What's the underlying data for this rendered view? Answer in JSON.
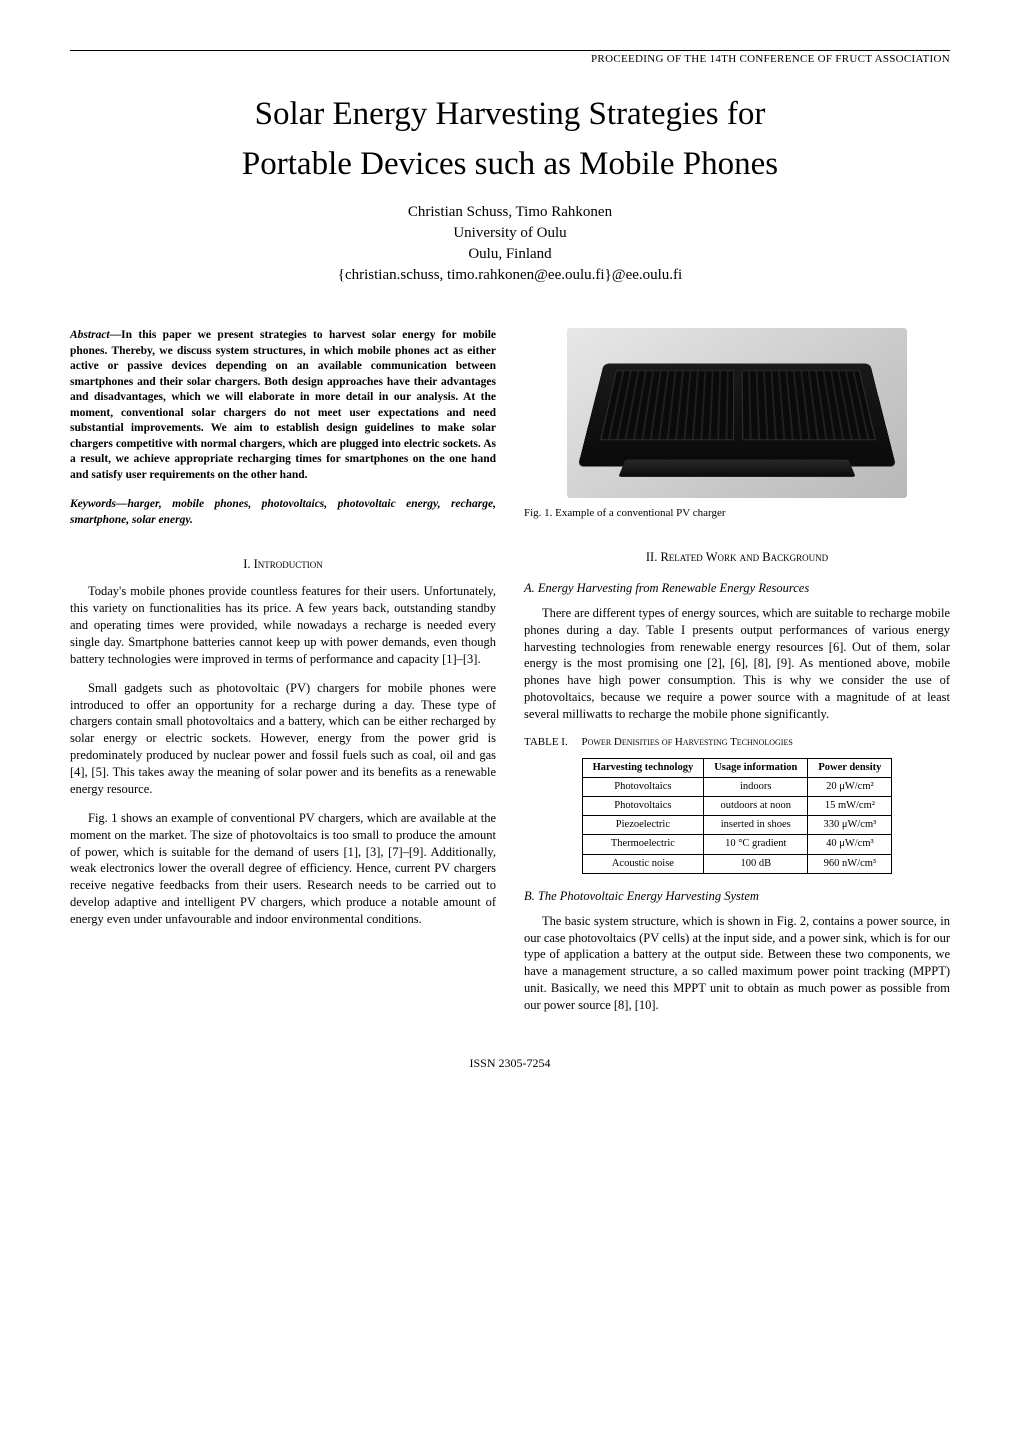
{
  "header": {
    "running": "PROCEEDING OF THE 14TH CONFERENCE OF FRUCT ASSOCIATION"
  },
  "title": {
    "line1": "Solar Energy Harvesting Strategies for",
    "line2": "Portable Devices such as Mobile Phones"
  },
  "authors": {
    "names": "Christian Schuss, Timo Rahkonen",
    "affiliation": "University of Oulu",
    "location": "Oulu, Finland",
    "email": "{christian.schuss, timo.rahkonen@ee.oulu.fi}@ee.oulu.fi"
  },
  "abstract": {
    "label": "Abstract",
    "text": "—In this paper we present strategies to harvest solar energy for mobile phones. Thereby, we discuss system structures, in which mobile phones act as either active or passive devices depending on an available communication between smartphones and their solar chargers. Both design approaches have their advantages and disadvantages, which we will elaborate in more detail in our analysis. At the moment, conventional solar chargers do not meet user expectations and need substantial improvements. We aim to establish design guidelines to make solar chargers competitive with normal chargers, which are plugged into electric sockets. As a result, we achieve appropriate recharging times for smartphones on the one hand and satisfy user requirements on the other hand."
  },
  "keywords": {
    "label": "Keywords",
    "text": "—harger, mobile phones, photovoltaics, photovoltaic energy, recharge, smartphone, solar energy."
  },
  "sections": {
    "s1": {
      "heading": "I.    Introduction",
      "p1": "Today's mobile phones provide countless features for their users. Unfortunately, this variety on functionalities has its price. A few years back, outstanding standby and operating times were provided, while nowadays a recharge is needed every single day. Smartphone batteries cannot keep up with power demands, even though battery technologies were improved in terms of performance and capacity [1]–[3].",
      "p2": "Small gadgets such as photovoltaic (PV) chargers for mobile phones were introduced to offer an opportunity for a recharge during a day. These type of chargers contain small photovoltaics and a battery, which can be either recharged by solar energy or electric sockets. However, energy from the power grid is predominately produced by nuclear power and fossil fuels such as coal, oil and gas [4], [5]. This takes away the meaning of solar power and its benefits as a renewable energy resource.",
      "p3": "Fig. 1 shows an example of conventional PV chargers, which are available at the moment on the market. The size of photovoltaics is too small to produce the amount of power, which is suitable for the demand of users [1], [3], [7]–[9]. Additionally, weak electronics lower the overall degree of efficiency. Hence, current PV chargers receive negative feedbacks from their users. Research needs to be carried out to develop adaptive and intelligent PV chargers, which produce a notable amount of energy even under unfavourable and indoor environmental conditions."
    },
    "fig1": {
      "caption": "Fig. 1.    Example of a conventional PV charger"
    },
    "s2": {
      "heading": "II.    Related Work and Background",
      "subA": "A. Energy Harvesting from Renewable Energy Resources",
      "pA": "There are different types of energy sources, which are suitable to recharge mobile phones during a day. Table I presents output performances of various energy harvesting technologies from renewable energy resources [6]. Out of them, solar energy is the most promising one [2], [6], [8], [9]. As mentioned above, mobile phones have high power consumption. This is why we consider the use of photovoltaics, because we require a power source with a magnitude of at least several milliwatts to recharge the mobile phone significantly.",
      "subB": "B. The Photovoltaic Energy Harvesting System",
      "pB": "The basic system structure, which is shown in Fig. 2, contains a power source, in our case photovoltaics (PV cells) at the input side, and a power sink, which is for our type of application a battery at the output side. Between these two components, we have a management structure, a so called maximum power point tracking (MPPT) unit. Basically, we need this MPPT unit to obtain as much power as possible from our power source [8], [10]."
    },
    "table1": {
      "caption_left": "TABLE I.",
      "caption_right": "Power Denisities of Harvesting Technologies",
      "columns": [
        "Harvesting technology",
        "Usage information",
        "Power density"
      ],
      "rows": [
        [
          "Photovoltaics",
          "indoors",
          "20 μW/cm²"
        ],
        [
          "Photovoltaics",
          "outdoors at noon",
          "15 mW/cm²"
        ],
        [
          "Piezoelectric",
          "inserted in shoes",
          "330 μW/cm³"
        ],
        [
          "Thermoelectric",
          "10 °C gradient",
          "40 μW/cm³"
        ],
        [
          "Acoustic noise",
          "100 dB",
          "960 nW/cm³"
        ]
      ]
    }
  },
  "footer": {
    "issn": "ISSN 2305-7254"
  }
}
